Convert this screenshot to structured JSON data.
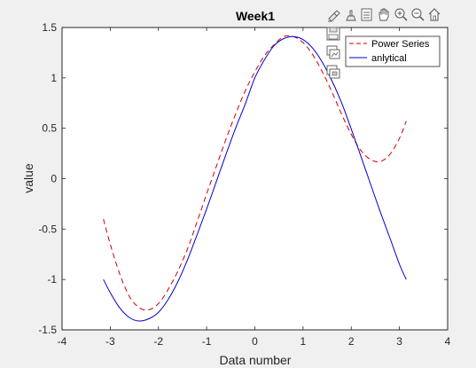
{
  "chart_data": {
    "type": "line",
    "title": "Week1",
    "xlabel": "Data number",
    "ylabel": "value",
    "xlim": [
      -4,
      4
    ],
    "ylim": [
      -1.5,
      1.5
    ],
    "x_ticks": [
      "-4",
      "-3",
      "-2",
      "-1",
      "0",
      "1",
      "2",
      "3",
      "4"
    ],
    "y_ticks": [
      "-1.5",
      "-1",
      "-0.5",
      "0",
      "0.5",
      "1",
      "1.5"
    ],
    "grid": false,
    "legend_position": "top-right",
    "series": [
      {
        "name": "Power Series",
        "color": "#cc0000",
        "line_style": "dashed",
        "x": [
          -3.1416,
          -3.0,
          -2.8,
          -2.6,
          -2.4,
          -2.2,
          -2.0,
          -1.8,
          -1.6,
          -1.4,
          -1.2,
          -1.0,
          -0.8,
          -0.6,
          -0.4,
          -0.2,
          0.0,
          0.2,
          0.4,
          0.6,
          0.8,
          1.0,
          1.2,
          1.4,
          1.6,
          1.8,
          2.0,
          2.2,
          2.4,
          2.6,
          2.8,
          3.0,
          3.1416
        ],
        "y": [
          -0.4,
          -0.65,
          -0.95,
          -1.17,
          -1.28,
          -1.3,
          -1.24,
          -1.1,
          -0.92,
          -0.7,
          -0.43,
          -0.15,
          0.12,
          0.39,
          0.64,
          0.87,
          1.06,
          1.22,
          1.33,
          1.41,
          1.41,
          1.35,
          1.23,
          1.06,
          0.86,
          0.64,
          0.44,
          0.28,
          0.19,
          0.17,
          0.24,
          0.4,
          0.57
        ]
      },
      {
        "name": "anlytical",
        "color": "#0000cc",
        "line_style": "solid",
        "x": [
          -3.1416,
          -3.0,
          -2.8,
          -2.6,
          -2.4,
          -2.2,
          -2.0,
          -1.8,
          -1.6,
          -1.4,
          -1.2,
          -1.0,
          -0.8,
          -0.6,
          -0.4,
          -0.2,
          0.0,
          0.2,
          0.4,
          0.6,
          0.8,
          1.0,
          1.2,
          1.4,
          1.6,
          1.8,
          2.0,
          2.2,
          2.4,
          2.6,
          2.8,
          3.0,
          3.1416
        ],
        "y": [
          -1.0,
          -1.131,
          -1.284,
          -1.379,
          -1.412,
          -1.39,
          -1.326,
          -1.2,
          -1.025,
          -0.808,
          -0.558,
          -0.301,
          -0.03,
          0.24,
          0.5,
          0.74,
          1.0,
          1.18,
          1.32,
          1.39,
          1.41,
          1.38,
          1.295,
          1.155,
          0.97,
          0.753,
          0.493,
          0.223,
          -0.053,
          -0.326,
          -0.585,
          -0.849,
          -1.0
        ]
      }
    ]
  },
  "toolbar": {
    "icons": [
      "brush-icon",
      "data-tips-icon",
      "text-tool-icon",
      "pan-icon",
      "zoom-in-icon",
      "zoom-out-icon",
      "home-icon"
    ],
    "dropdown_icons": [
      "save-icon",
      "copy-figure-icon",
      "copy-image-icon"
    ]
  }
}
